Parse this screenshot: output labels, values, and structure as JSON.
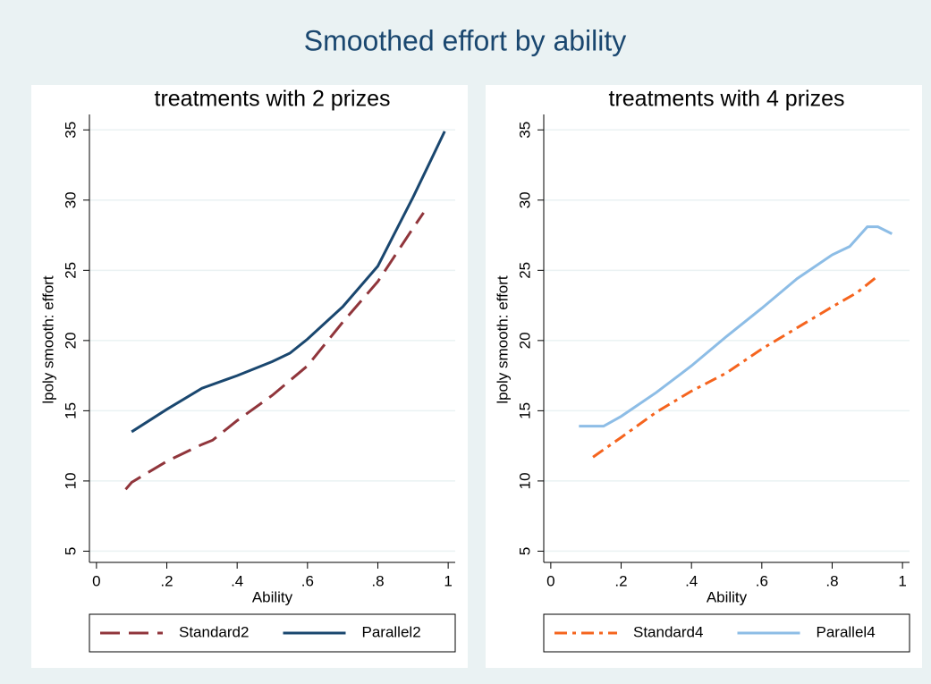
{
  "title": "Smoothed effort by ability",
  "chart_data": [
    {
      "type": "line",
      "title": "treatments with 2 prizes",
      "xlabel": "Ability",
      "ylabel": "lpoly smooth: effort",
      "xlim": [
        -0.02,
        1.02
      ],
      "ylim": [
        4.2,
        36.1
      ],
      "xticks": [
        0,
        {
          "value": 0.2,
          "label": ".2"
        },
        {
          "value": 0.4,
          "label": ".4"
        },
        {
          "value": 0.6,
          "label": ".6"
        },
        {
          "value": 0.8,
          "label": ".8"
        },
        1
      ],
      "yticks": [
        5,
        10,
        15,
        20,
        25,
        30,
        35
      ],
      "grid": true,
      "series": [
        {
          "name": "Standard2",
          "color": "#90353b",
          "dash": "22 10",
          "x": [
            0.083,
            0.1,
            0.2,
            0.3,
            0.33,
            0.4,
            0.5,
            0.6,
            0.7,
            0.8,
            0.9,
            0.93
          ],
          "values": [
            9.4,
            9.9,
            11.4,
            12.6,
            12.9,
            14.3,
            16.1,
            18.2,
            21.3,
            24.2,
            28.0,
            29.1
          ]
        },
        {
          "name": "Parallel2",
          "color": "#1a476f",
          "dash": "none",
          "x": [
            0.1,
            0.2,
            0.3,
            0.4,
            0.5,
            0.55,
            0.6,
            0.7,
            0.8,
            0.9,
            0.95,
            0.99
          ],
          "values": [
            13.5,
            15.1,
            16.6,
            17.5,
            18.5,
            19.1,
            20.1,
            22.4,
            25.3,
            30.2,
            32.8,
            34.9
          ]
        }
      ]
    },
    {
      "type": "line",
      "title": "treatments with 4 prizes",
      "xlabel": "Ability",
      "ylabel": "lpoly smooth: effort",
      "xlim": [
        -0.02,
        1.02
      ],
      "ylim": [
        4.2,
        36.1
      ],
      "xticks": [
        0,
        {
          "value": 0.2,
          "label": ".2"
        },
        {
          "value": 0.4,
          "label": ".4"
        },
        {
          "value": 0.6,
          "label": ".6"
        },
        {
          "value": 0.8,
          "label": ".8"
        },
        1
      ],
      "yticks": [
        5,
        10,
        15,
        20,
        25,
        30,
        35
      ],
      "grid": true,
      "series": [
        {
          "name": "Standard4",
          "color": "#f5641e",
          "dash": "14 6 4 6",
          "x": [
            0.12,
            0.2,
            0.3,
            0.4,
            0.5,
            0.6,
            0.7,
            0.8,
            0.87,
            0.93
          ],
          "values": [
            11.7,
            13.1,
            14.9,
            16.4,
            17.7,
            19.4,
            20.9,
            22.4,
            23.4,
            24.6
          ]
        },
        {
          "name": "Parallel4",
          "color": "#8dbde6",
          "dash": "none",
          "x": [
            0.08,
            0.15,
            0.2,
            0.3,
            0.4,
            0.5,
            0.6,
            0.7,
            0.8,
            0.85,
            0.9,
            0.93,
            0.97
          ],
          "values": [
            13.9,
            13.9,
            14.6,
            16.3,
            18.2,
            20.3,
            22.3,
            24.4,
            26.1,
            26.7,
            28.1,
            28.1,
            27.6
          ]
        }
      ]
    }
  ]
}
